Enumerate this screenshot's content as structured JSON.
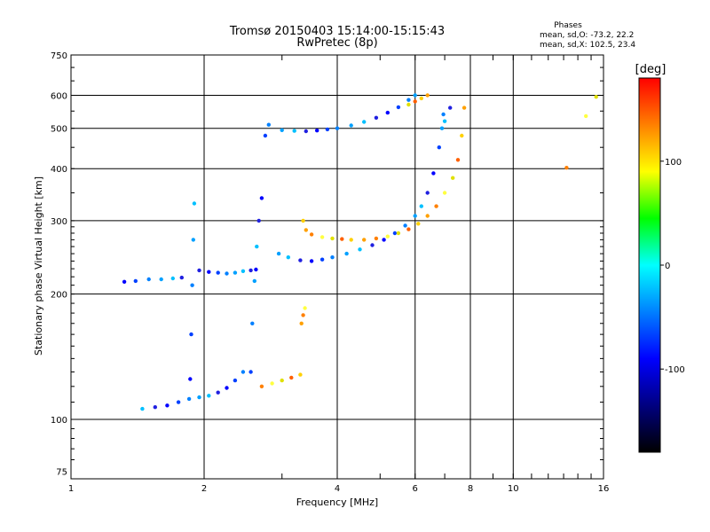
{
  "chart_data": {
    "type": "scatter",
    "title": "Tromsø 20150403 15:14:00-15:15:43",
    "subtitle": "RwPretec (8p)",
    "xlabel": "Frequency [MHz]",
    "ylabel": "Stationary phase Virtual Height [km]",
    "x_scale": "log",
    "y_scale": "log",
    "xlim": [
      1,
      16
    ],
    "ylim": [
      72,
      750
    ],
    "xticks": [
      1,
      2,
      4,
      6,
      8,
      10,
      16
    ],
    "yticks": [
      75,
      100,
      200,
      300,
      400,
      500,
      600,
      750
    ],
    "grid": true,
    "phases_box": {
      "title": "Phases",
      "line_o": "mean, sd,O: -73.2, 22.2",
      "line_x": "mean, sd,X: 102.5, 23.4"
    },
    "colorbar": {
      "label": "[deg]",
      "range": [
        -180,
        180
      ],
      "ticks": [
        100,
        0,
        -100
      ],
      "colors": [
        "#ff0000",
        "#ff8000",
        "#ffff00",
        "#00ff00",
        "#00ffff",
        "#0080ff",
        "#0000ff",
        "#000080",
        "#000000"
      ]
    },
    "series": [
      {
        "name": "O",
        "points": [
          [
            1.32,
            214
          ],
          [
            1.4,
            215
          ],
          [
            1.5,
            217
          ],
          [
            1.6,
            217
          ],
          [
            1.7,
            218
          ],
          [
            1.78,
            219
          ],
          [
            1.86,
            125
          ],
          [
            1.87,
            160
          ],
          [
            1.88,
            210
          ],
          [
            1.89,
            270
          ],
          [
            1.9,
            330
          ],
          [
            1.95,
            228
          ],
          [
            2.05,
            226
          ],
          [
            2.15,
            225
          ],
          [
            2.25,
            224
          ],
          [
            2.35,
            225
          ],
          [
            2.45,
            227
          ],
          [
            2.55,
            228
          ],
          [
            2.62,
            229
          ],
          [
            2.55,
            130
          ],
          [
            2.57,
            170
          ],
          [
            2.6,
            215
          ],
          [
            2.63,
            260
          ],
          [
            2.66,
            300
          ],
          [
            2.7,
            340
          ],
          [
            2.75,
            480
          ],
          [
            2.8,
            510
          ],
          [
            2.95,
            250
          ],
          [
            3.1,
            245
          ],
          [
            3.3,
            241
          ],
          [
            3.5,
            240
          ],
          [
            3.7,
            242
          ],
          [
            3.9,
            245
          ],
          [
            4.2,
            250
          ],
          [
            4.5,
            256
          ],
          [
            4.8,
            262
          ],
          [
            5.1,
            270
          ],
          [
            5.4,
            280
          ],
          [
            5.7,
            292
          ],
          [
            6.0,
            308
          ],
          [
            6.2,
            325
          ],
          [
            6.4,
            350
          ],
          [
            6.6,
            390
          ],
          [
            6.8,
            450
          ],
          [
            6.95,
            540
          ],
          [
            3.0,
            495
          ],
          [
            3.2,
            493
          ],
          [
            3.4,
            492
          ],
          [
            3.6,
            494
          ],
          [
            3.8,
            497
          ],
          [
            4.0,
            500
          ],
          [
            4.3,
            508
          ],
          [
            4.6,
            518
          ],
          [
            4.9,
            530
          ],
          [
            5.2,
            545
          ],
          [
            5.5,
            562
          ],
          [
            5.8,
            585
          ],
          [
            6.0,
            600
          ],
          [
            1.45,
            106
          ],
          [
            1.55,
            107
          ],
          [
            1.65,
            108
          ],
          [
            1.75,
            110
          ],
          [
            1.85,
            112
          ],
          [
            1.95,
            113
          ],
          [
            2.05,
            114
          ],
          [
            2.15,
            116
          ],
          [
            2.25,
            119
          ],
          [
            2.35,
            124
          ],
          [
            2.45,
            130
          ],
          [
            6.9,
            500
          ],
          [
            7.0,
            520
          ],
          [
            7.2,
            560
          ]
        ]
      },
      {
        "name": "X",
        "points": [
          [
            3.35,
            300
          ],
          [
            3.4,
            285
          ],
          [
            3.5,
            278
          ],
          [
            3.7,
            274
          ],
          [
            3.9,
            272
          ],
          [
            4.1,
            271
          ],
          [
            4.3,
            270
          ],
          [
            4.6,
            270
          ],
          [
            4.9,
            272
          ],
          [
            5.2,
            275
          ],
          [
            5.5,
            280
          ],
          [
            5.8,
            286
          ],
          [
            6.1,
            295
          ],
          [
            6.4,
            308
          ],
          [
            6.7,
            325
          ],
          [
            7.0,
            350
          ],
          [
            7.3,
            380
          ],
          [
            7.5,
            420
          ],
          [
            7.65,
            480
          ],
          [
            7.75,
            560
          ],
          [
            2.7,
            120
          ],
          [
            2.85,
            122
          ],
          [
            3.0,
            124
          ],
          [
            3.15,
            126
          ],
          [
            3.3,
            128
          ],
          [
            3.32,
            170
          ],
          [
            3.35,
            178
          ],
          [
            3.38,
            185
          ],
          [
            5.8,
            570
          ],
          [
            6.0,
            580
          ],
          [
            6.2,
            590
          ],
          [
            6.4,
            600
          ],
          [
            13.2,
            402
          ],
          [
            14.6,
            535
          ],
          [
            15.4,
            595
          ]
        ]
      }
    ]
  }
}
